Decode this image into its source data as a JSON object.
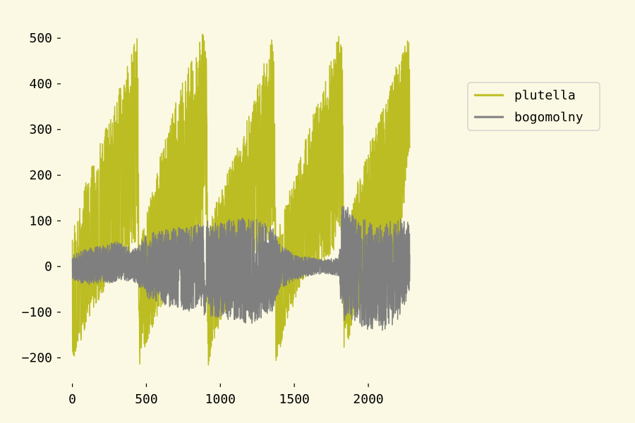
{
  "chart_data": {
    "type": "line",
    "title": "",
    "xlabel": "",
    "ylabel": "",
    "xlim": [
      -60,
      2300
    ],
    "ylim": [
      -250,
      545
    ],
    "xticks": [
      0,
      500,
      1000,
      1500,
      2000
    ],
    "yticks": [
      -200,
      -100,
      0,
      100,
      200,
      300,
      400,
      500
    ],
    "grid": false,
    "legend_placement": "outside-right",
    "x_range": [
      0,
      2280
    ],
    "series": [
      {
        "name": "plutella",
        "color": "#bcbd22",
        "envelope": {
          "x": [
            0,
            40,
            100,
            200,
            300,
            400,
            440,
            455,
            470,
            520,
            600,
            700,
            800,
            880,
            905,
            915,
            930,
            980,
            1100,
            1200,
            1300,
            1350,
            1365,
            1375,
            1395,
            1450,
            1550,
            1650,
            1750,
            1810,
            1825,
            1835,
            1850,
            1900,
            2000,
            2100,
            2200,
            2270,
            2280
          ],
          "high": [
            60,
            140,
            200,
            280,
            380,
            470,
            515,
            30,
            70,
            140,
            250,
            360,
            460,
            510,
            500,
            40,
            100,
            150,
            250,
            340,
            450,
            500,
            480,
            50,
            90,
            150,
            250,
            360,
            460,
            520,
            500,
            40,
            90,
            160,
            260,
            360,
            450,
            500,
            490
          ],
          "low": [
            -220,
            -180,
            -120,
            -60,
            -20,
            40,
            60,
            -215,
            -200,
            -150,
            -90,
            -20,
            20,
            80,
            90,
            -225,
            -210,
            -140,
            -60,
            -10,
            30,
            90,
            100,
            -210,
            -190,
            -120,
            -40,
            0,
            20,
            60,
            60,
            -190,
            -180,
            -120,
            -70,
            -40,
            -30,
            250,
            200
          ]
        }
      },
      {
        "name": "bogomolny",
        "color": "#7f7f7f",
        "envelope": {
          "x": [
            0,
            100,
            200,
            300,
            400,
            440,
            455,
            500,
            600,
            700,
            800,
            900,
            1000,
            1100,
            1200,
            1300,
            1350,
            1400,
            1500,
            1600,
            1700,
            1800,
            1820,
            1840,
            1900,
            2000,
            2100,
            2200,
            2280
          ],
          "high": [
            25,
            40,
            45,
            55,
            40,
            40,
            55,
            70,
            80,
            85,
            90,
            100,
            100,
            105,
            110,
            95,
            90,
            50,
            25,
            20,
            15,
            20,
            130,
            140,
            110,
            100,
            95,
            105,
            100
          ],
          "low": [
            -30,
            -40,
            -35,
            -35,
            -30,
            -40,
            -50,
            -70,
            -80,
            -95,
            -100,
            -110,
            -115,
            -120,
            -130,
            -110,
            -100,
            -50,
            -30,
            -20,
            -15,
            -20,
            -110,
            -120,
            -120,
            -140,
            -140,
            -120,
            -60
          ]
        }
      }
    ]
  }
}
